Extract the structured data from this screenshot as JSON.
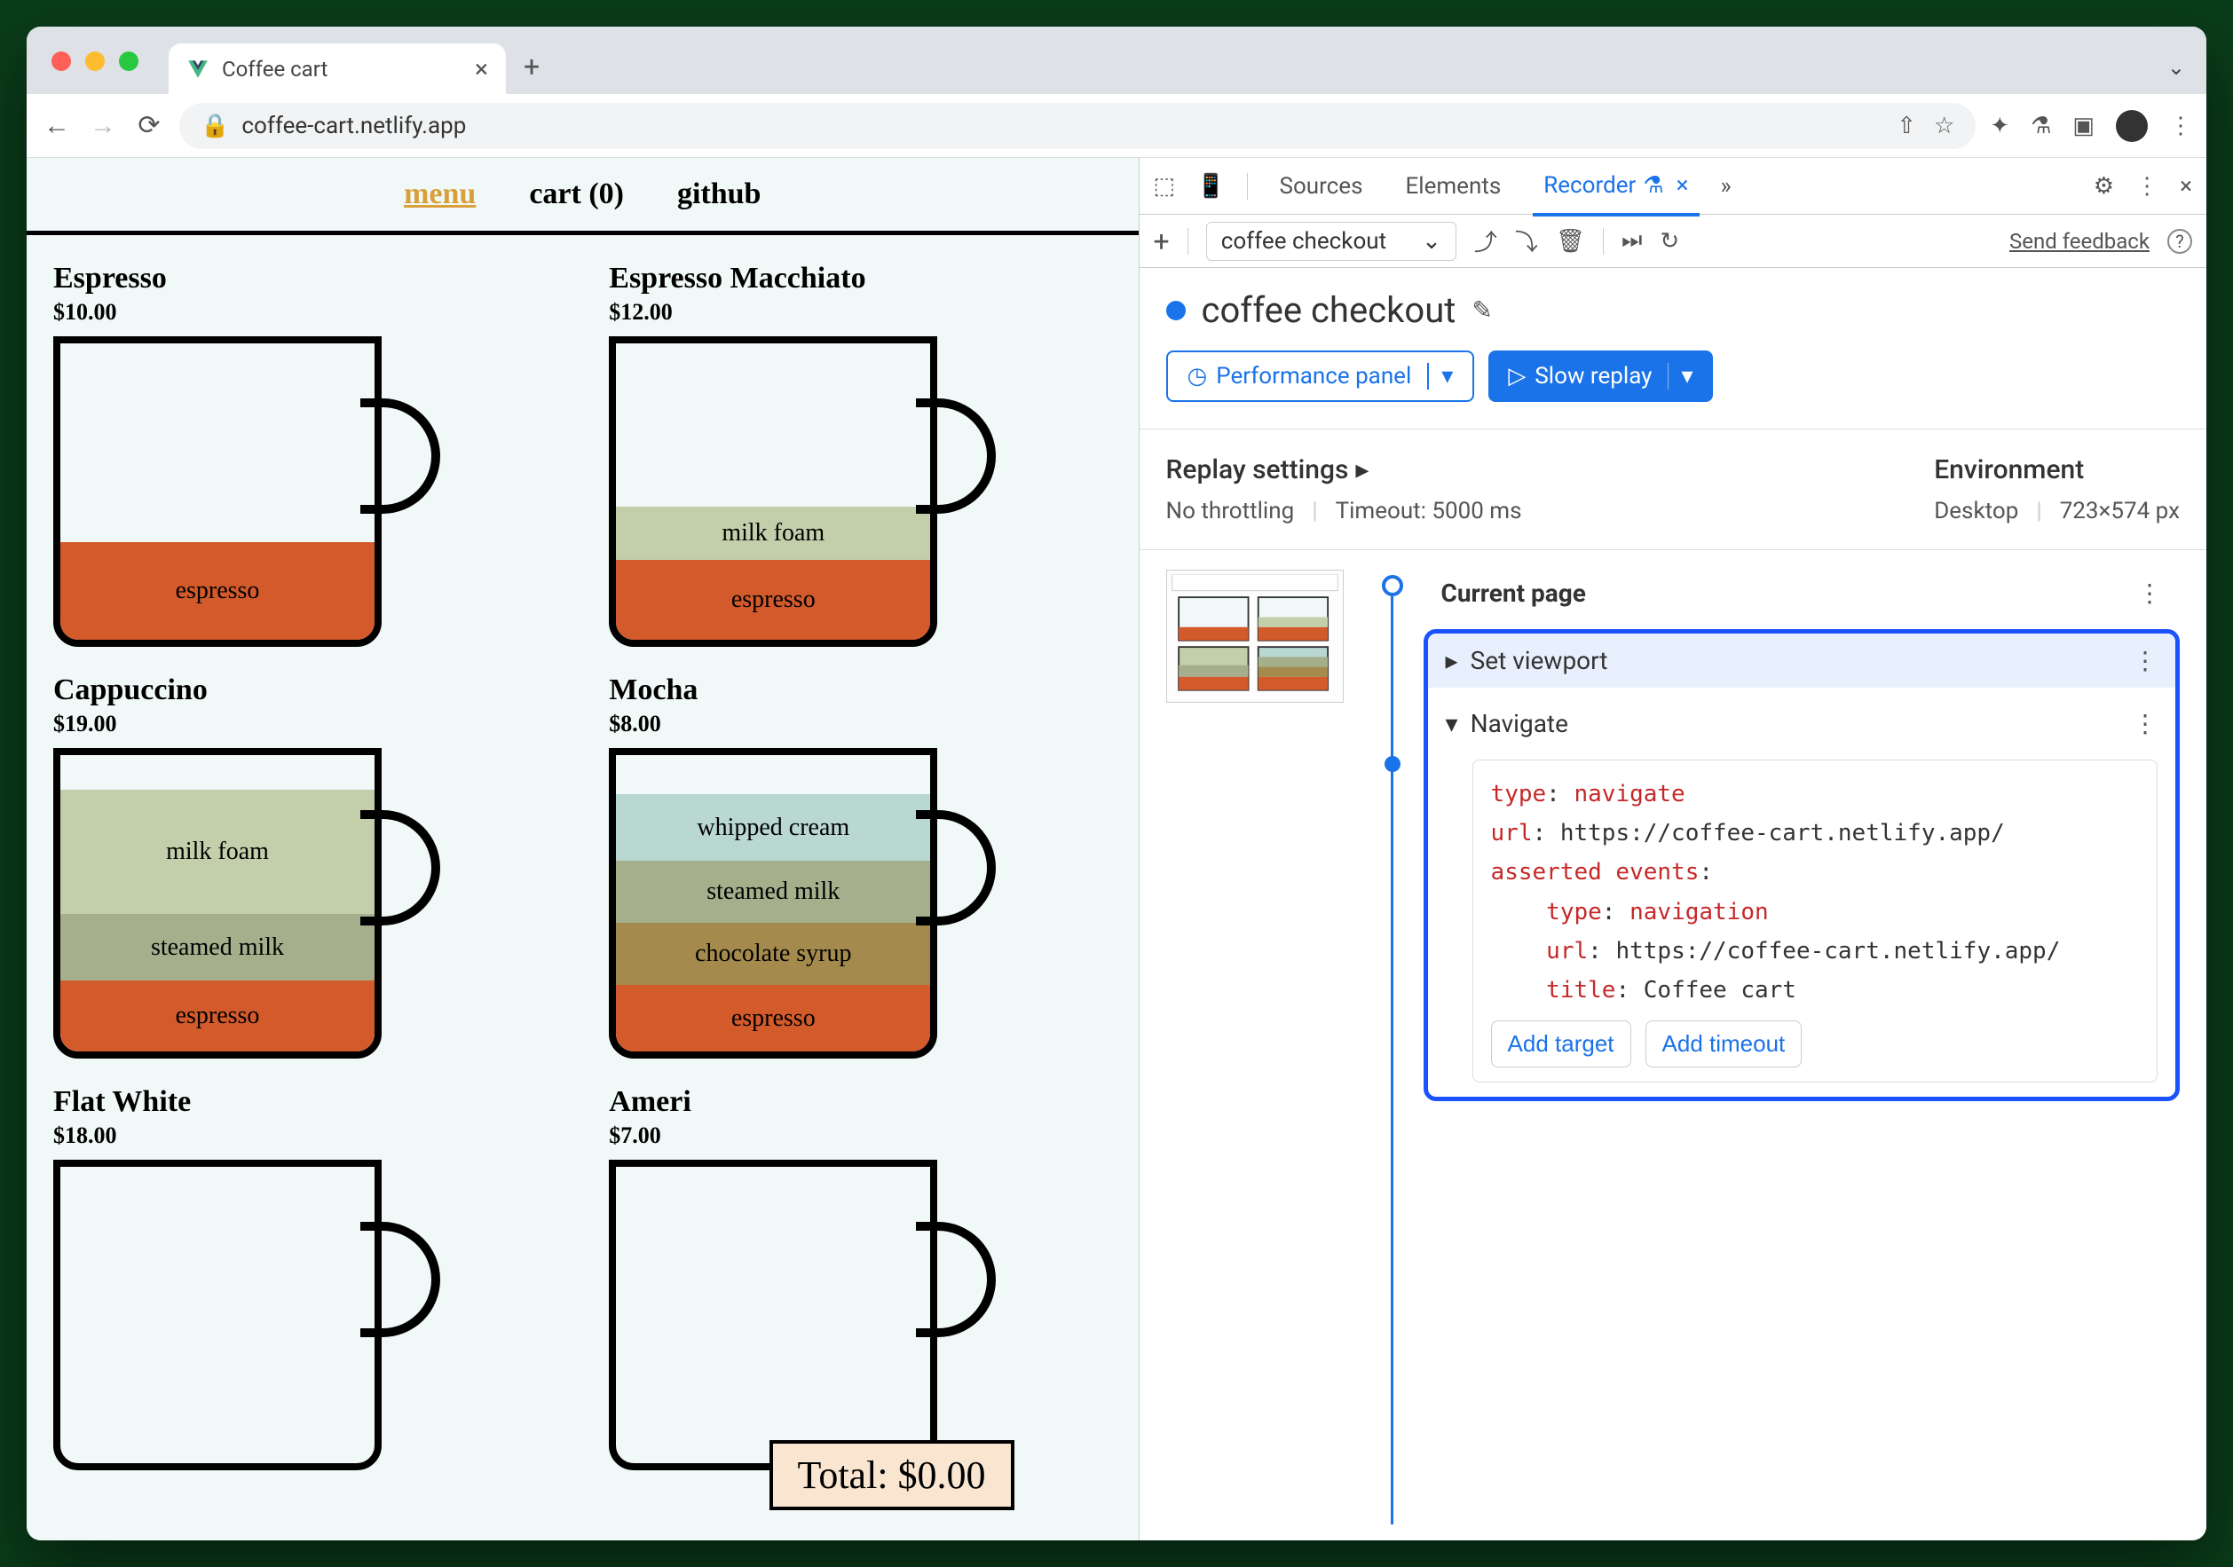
{
  "browser": {
    "tab_title": "Coffee cart",
    "url": "coffee-cart.netlify.app"
  },
  "page": {
    "nav": {
      "menu": "menu",
      "cart": "cart (0)",
      "github": "github"
    },
    "products": [
      {
        "name": "Espresso",
        "price": "$10.00",
        "layers": [
          {
            "label": "espresso",
            "h": 110,
            "color": "#d35a2b"
          }
        ]
      },
      {
        "name": "Espresso Macchiato",
        "price": "$12.00",
        "layers": [
          {
            "label": "espresso",
            "h": 90,
            "color": "#d35a2b"
          },
          {
            "label": "milk foam",
            "h": 60,
            "color": "#c3cfab"
          }
        ]
      },
      {
        "name": "Cappuccino",
        "price": "$19.00",
        "layers": [
          {
            "label": "espresso",
            "h": 80,
            "color": "#d35a2b"
          },
          {
            "label": "steamed milk",
            "h": 75,
            "color": "#a6af8c"
          },
          {
            "label": "milk foam",
            "h": 140,
            "color": "#c3cfab"
          }
        ]
      },
      {
        "name": "Mocha",
        "price": "$8.00",
        "layers": [
          {
            "label": "espresso",
            "h": 75,
            "color": "#d35a2b"
          },
          {
            "label": "chocolate syrup",
            "h": 70,
            "color": "#a48a4d"
          },
          {
            "label": "steamed milk",
            "h": 70,
            "color": "#a6af8c"
          },
          {
            "label": "whipped cream",
            "h": 75,
            "color": "#bad8d2"
          }
        ]
      },
      {
        "name": "Flat White",
        "price": "$18.00",
        "layers": []
      },
      {
        "name": "Americano",
        "price": "$7.00",
        "layers": []
      }
    ],
    "total": "Total: $0.00"
  },
  "devtools": {
    "tabs": {
      "sources": "Sources",
      "elements": "Elements",
      "recorder": "Recorder"
    },
    "recording_select": "coffee checkout",
    "feedback": "Send feedback",
    "title": "coffee checkout",
    "perf_btn": "Performance panel",
    "replay_btn": "Slow replay",
    "settings": {
      "replay_label": "Replay settings",
      "throttling": "No throttling",
      "timeout": "Timeout: 5000 ms",
      "env_label": "Environment",
      "env_device": "Desktop",
      "env_size": "723×574 px"
    },
    "steps": {
      "current": "Current page",
      "viewport": "Set viewport",
      "navigate": "Navigate",
      "code": {
        "type_k": "type",
        "type_v": "navigate",
        "url_k": "url",
        "url_v": "https://coffee-cart.netlify.app/",
        "ae_k": "asserted events",
        "nav_type_k": "type",
        "nav_type_v": "navigation",
        "nav_url_k": "url",
        "nav_url_v": "https://coffee-cart.netlify.app/",
        "title_k": "title",
        "title_v": "Coffee cart"
      },
      "add_target": "Add target",
      "add_timeout": "Add timeout"
    }
  }
}
